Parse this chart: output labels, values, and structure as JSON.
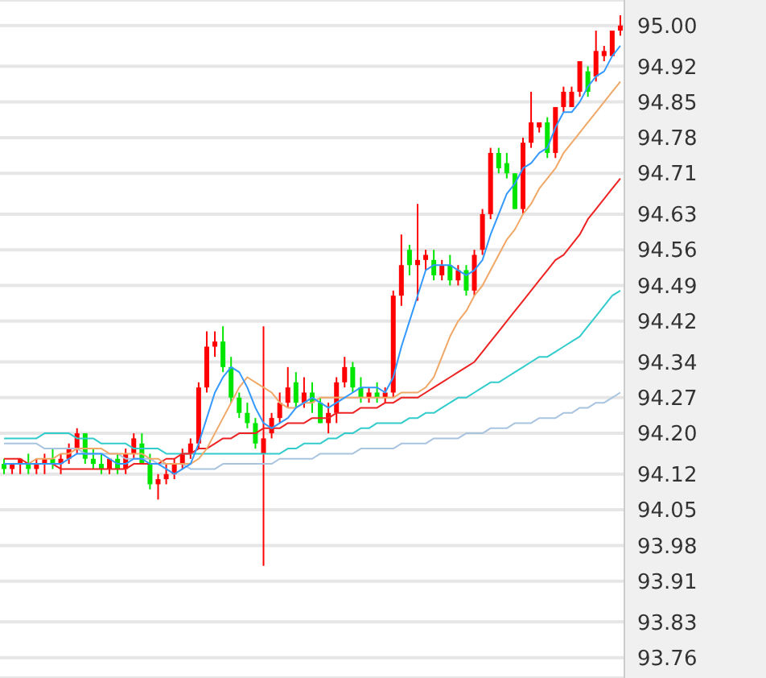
{
  "chart_data": {
    "type": "candlestick",
    "categories": [
      null,
      null,
      null,
      null,
      null,
      null,
      null,
      null,
      null,
      null,
      null,
      null,
      null,
      null,
      null,
      null,
      null,
      null,
      null,
      null,
      null,
      null,
      null,
      null,
      null,
      null,
      null,
      null,
      null,
      null,
      null,
      null,
      null,
      null,
      null,
      null,
      null,
      null,
      null,
      null,
      null,
      null,
      null,
      null,
      null,
      null,
      null,
      null,
      null,
      null,
      null,
      null,
      null,
      null,
      null,
      null,
      null,
      null,
      null,
      null,
      null,
      null,
      null,
      null,
      null,
      null,
      null,
      null,
      null,
      null,
      null,
      null,
      null,
      null,
      null,
      null,
      null
    ],
    "ohlc": [
      [
        94.14,
        94.15,
        94.12,
        94.13
      ],
      [
        94.13,
        94.14,
        94.12,
        94.14
      ],
      [
        94.14,
        94.15,
        94.12,
        94.15
      ],
      [
        94.14,
        94.16,
        94.12,
        94.13
      ],
      [
        94.13,
        94.15,
        94.12,
        94.14
      ],
      [
        94.14,
        94.16,
        94.12,
        94.15
      ],
      [
        94.15,
        94.17,
        94.13,
        94.14
      ],
      [
        94.14,
        94.16,
        94.12,
        94.15
      ],
      [
        94.15,
        94.18,
        94.14,
        94.17
      ],
      [
        94.17,
        94.21,
        94.16,
        94.2
      ],
      [
        94.2,
        94.2,
        94.14,
        94.15
      ],
      [
        94.15,
        94.17,
        94.13,
        94.14
      ],
      [
        94.14,
        94.16,
        94.12,
        94.13
      ],
      [
        94.13,
        94.15,
        94.12,
        94.15
      ],
      [
        94.15,
        94.16,
        94.12,
        94.13
      ],
      [
        94.13,
        94.17,
        94.12,
        94.16
      ],
      [
        94.16,
        94.2,
        94.15,
        94.19
      ],
      [
        94.18,
        94.2,
        94.14,
        94.14
      ],
      [
        94.14,
        94.16,
        94.09,
        94.1
      ],
      [
        94.1,
        94.12,
        94.07,
        94.11
      ],
      [
        94.11,
        94.14,
        94.1,
        94.12
      ],
      [
        94.12,
        94.15,
        94.11,
        94.14
      ],
      [
        94.14,
        94.17,
        94.13,
        94.16
      ],
      [
        94.16,
        94.19,
        94.15,
        94.18
      ],
      [
        94.18,
        94.3,
        94.17,
        94.29
      ],
      [
        94.29,
        94.4,
        94.28,
        94.37
      ],
      [
        94.37,
        94.4,
        94.35,
        94.38
      ],
      [
        94.38,
        94.41,
        94.32,
        94.33
      ],
      [
        94.33,
        94.35,
        94.26,
        94.27
      ],
      [
        94.27,
        94.28,
        94.23,
        94.24
      ],
      [
        94.24,
        94.26,
        94.21,
        94.22
      ],
      [
        94.22,
        94.23,
        94.17,
        94.18
      ],
      [
        94.16,
        94.41,
        93.94,
        94.19
      ],
      [
        94.2,
        94.24,
        94.19,
        94.23
      ],
      [
        94.23,
        94.28,
        94.22,
        94.26
      ],
      [
        94.26,
        94.33,
        94.25,
        94.29
      ],
      [
        94.3,
        94.32,
        94.25,
        94.26
      ],
      [
        94.26,
        94.31,
        94.25,
        94.28
      ],
      [
        94.28,
        94.3,
        94.24,
        94.26
      ],
      [
        94.26,
        94.27,
        94.22,
        94.22
      ],
      [
        94.22,
        94.26,
        94.2,
        94.24
      ],
      [
        94.24,
        94.31,
        94.22,
        94.3
      ],
      [
        94.3,
        94.35,
        94.29,
        94.33
      ],
      [
        94.33,
        94.34,
        94.28,
        94.29
      ],
      [
        94.29,
        94.31,
        94.26,
        94.27
      ],
      [
        94.27,
        94.29,
        94.26,
        94.28
      ],
      [
        94.28,
        94.3,
        94.26,
        94.27
      ],
      [
        94.27,
        94.29,
        94.26,
        94.28
      ],
      [
        94.28,
        94.48,
        94.27,
        94.47
      ],
      [
        94.47,
        94.59,
        94.45,
        94.53
      ],
      [
        94.56,
        94.57,
        94.51,
        94.53
      ],
      [
        94.53,
        94.65,
        94.46,
        94.54
      ],
      [
        94.54,
        94.56,
        94.52,
        94.55
      ],
      [
        94.54,
        94.56,
        94.5,
        94.51
      ],
      [
        94.51,
        94.54,
        94.5,
        94.53
      ],
      [
        94.53,
        94.55,
        94.49,
        94.5
      ],
      [
        94.5,
        94.53,
        94.49,
        94.52
      ],
      [
        94.52,
        94.53,
        94.47,
        94.48
      ],
      [
        94.48,
        94.56,
        94.47,
        94.55
      ],
      [
        94.56,
        94.64,
        94.55,
        94.63
      ],
      [
        94.63,
        94.76,
        94.62,
        94.75
      ],
      [
        94.75,
        94.76,
        94.71,
        94.72
      ],
      [
        94.73,
        94.75,
        94.7,
        94.71
      ],
      [
        94.71,
        94.71,
        94.64,
        94.64
      ],
      [
        94.64,
        94.78,
        94.63,
        94.77
      ],
      [
        94.77,
        94.87,
        94.76,
        94.81
      ],
      [
        94.8,
        94.81,
        94.79,
        94.81
      ],
      [
        94.81,
        94.82,
        94.74,
        94.75
      ],
      [
        94.75,
        94.84,
        94.74,
        94.84
      ],
      [
        94.84,
        94.88,
        94.83,
        94.87
      ],
      [
        94.84,
        94.88,
        94.84,
        94.87
      ],
      [
        94.87,
        94.93,
        94.86,
        94.93
      ],
      [
        94.91,
        94.92,
        94.86,
        94.87
      ],
      [
        94.9,
        94.99,
        94.89,
        94.95
      ],
      [
        94.94,
        94.96,
        94.93,
        94.95
      ],
      [
        94.94,
        94.99,
        94.94,
        94.99
      ],
      [
        94.99,
        95.02,
        94.98,
        95.0
      ]
    ],
    "colors": [
      "#00e600",
      "#ff0000",
      "#ff0000",
      "#00e600",
      "#ff0000",
      "#ff0000",
      "#00e600",
      "#ff0000",
      "#ff0000",
      "#ff0000",
      "#00e600",
      "#00e600",
      "#00e600",
      "#ff0000",
      "#00e600",
      "#ff0000",
      "#ff0000",
      "#00e600",
      "#00e600",
      "#ff0000",
      "#ff0000",
      "#ff0000",
      "#ff0000",
      "#ff0000",
      "#ff0000",
      "#ff0000",
      "#ff0000",
      "#00e600",
      "#00e600",
      "#00e600",
      "#00e600",
      "#00e600",
      "#ff0000",
      "#ff0000",
      "#ff0000",
      "#ff0000",
      "#00e600",
      "#ff0000",
      "#00e600",
      "#00e600",
      "#ff0000",
      "#ff0000",
      "#ff0000",
      "#00e600",
      "#00e600",
      "#ff0000",
      "#00e600",
      "#ff0000",
      "#ff0000",
      "#ff0000",
      "#00e600",
      "#ff0000",
      "#ff0000",
      "#00e600",
      "#ff0000",
      "#00e600",
      "#ff0000",
      "#00e600",
      "#ff0000",
      "#ff0000",
      "#ff0000",
      "#00e600",
      "#00e600",
      "#00e600",
      "#ff0000",
      "#ff0000",
      "#ff0000",
      "#00e600",
      "#ff0000",
      "#ff0000",
      "#ff0000",
      "#ff0000",
      "#00e600",
      "#ff0000",
      "#ff0000",
      "#ff0000",
      "#ff0000"
    ],
    "series": [
      {
        "type": "line",
        "color": "#a8c4de",
        "values": [
          94.18,
          94.18,
          94.18,
          94.18,
          94.18,
          94.17,
          94.17,
          94.17,
          94.17,
          94.17,
          94.16,
          94.16,
          94.16,
          94.16,
          94.16,
          94.15,
          94.15,
          94.15,
          94.15,
          94.14,
          94.14,
          94.14,
          94.14,
          94.13,
          94.13,
          94.13,
          94.13,
          94.14,
          94.14,
          94.14,
          94.14,
          94.14,
          94.14,
          94.14,
          94.15,
          94.15,
          94.15,
          94.15,
          94.15,
          94.16,
          94.16,
          94.16,
          94.16,
          94.16,
          94.17,
          94.17,
          94.17,
          94.17,
          94.17,
          94.18,
          94.18,
          94.18,
          94.18,
          94.19,
          94.19,
          94.19,
          94.19,
          94.2,
          94.2,
          94.2,
          94.21,
          94.21,
          94.21,
          94.22,
          94.22,
          94.22,
          94.23,
          94.23,
          94.23,
          94.24,
          94.24,
          94.25,
          94.25,
          94.26,
          94.26,
          94.27,
          94.28
        ]
      },
      {
        "type": "line",
        "color": "#33cccc",
        "values": [
          94.19,
          94.19,
          94.19,
          94.19,
          94.19,
          94.2,
          94.2,
          94.2,
          94.2,
          94.19,
          94.19,
          94.19,
          94.18,
          94.18,
          94.18,
          94.18,
          94.17,
          94.17,
          94.17,
          94.17,
          94.16,
          94.16,
          94.16,
          94.16,
          94.16,
          94.16,
          94.16,
          94.16,
          94.16,
          94.16,
          94.16,
          94.16,
          94.16,
          94.16,
          94.16,
          94.17,
          94.17,
          94.18,
          94.18,
          94.18,
          94.19,
          94.19,
          94.2,
          94.2,
          94.21,
          94.21,
          94.22,
          94.22,
          94.22,
          94.22,
          94.23,
          94.23,
          94.24,
          94.24,
          94.25,
          94.26,
          94.27,
          94.27,
          94.28,
          94.29,
          94.3,
          94.3,
          94.31,
          94.32,
          94.33,
          94.34,
          94.35,
          94.35,
          94.36,
          94.37,
          94.38,
          94.39,
          94.41,
          94.43,
          94.45,
          94.47,
          94.48
        ]
      },
      {
        "type": "line",
        "color": "#ee2222",
        "values": [
          94.15,
          94.15,
          94.15,
          94.14,
          94.14,
          94.14,
          94.14,
          94.13,
          94.13,
          94.13,
          94.13,
          94.13,
          94.13,
          94.13,
          94.13,
          94.13,
          94.14,
          94.14,
          94.14,
          94.14,
          94.15,
          94.15,
          94.16,
          94.16,
          94.17,
          94.17,
          94.18,
          94.19,
          94.19,
          94.2,
          94.2,
          94.2,
          94.21,
          94.21,
          94.21,
          94.22,
          94.22,
          94.22,
          94.23,
          94.23,
          94.23,
          94.24,
          94.24,
          94.24,
          94.25,
          94.25,
          94.25,
          94.26,
          94.26,
          94.27,
          94.27,
          94.27,
          94.28,
          94.29,
          94.3,
          94.31,
          94.32,
          94.33,
          94.34,
          94.36,
          94.38,
          94.4,
          94.42,
          94.44,
          94.46,
          94.48,
          94.5,
          94.52,
          94.54,
          94.55,
          94.57,
          94.59,
          94.62,
          94.64,
          94.66,
          94.68,
          94.7
        ]
      },
      {
        "type": "line",
        "color": "#f0a868",
        "values": [
          94.14,
          94.14,
          94.14,
          94.14,
          94.15,
          94.15,
          94.15,
          94.16,
          94.16,
          94.17,
          94.17,
          94.17,
          94.17,
          94.16,
          94.16,
          94.16,
          94.16,
          94.16,
          94.15,
          94.15,
          94.14,
          94.14,
          94.14,
          94.14,
          94.15,
          94.17,
          94.2,
          94.23,
          94.26,
          94.29,
          94.31,
          94.3,
          94.29,
          94.28,
          94.26,
          94.25,
          94.25,
          94.26,
          94.26,
          94.27,
          94.27,
          94.27,
          94.27,
          94.27,
          94.27,
          94.27,
          94.27,
          94.27,
          94.27,
          94.28,
          94.28,
          94.28,
          94.29,
          94.31,
          94.35,
          94.39,
          94.42,
          94.44,
          94.47,
          94.49,
          94.52,
          94.55,
          94.58,
          94.6,
          94.63,
          94.65,
          94.68,
          94.7,
          94.72,
          94.75,
          94.77,
          94.79,
          94.81,
          94.83,
          94.85,
          94.87,
          94.89
        ]
      },
      {
        "type": "line",
        "color": "#3399ff",
        "values": [
          94.14,
          94.14,
          94.14,
          94.14,
          94.14,
          94.14,
          94.14,
          94.14,
          94.15,
          94.16,
          94.16,
          94.16,
          94.16,
          94.15,
          94.14,
          94.14,
          94.15,
          94.15,
          94.14,
          94.14,
          94.13,
          94.12,
          94.13,
          94.14,
          94.18,
          94.23,
          94.28,
          94.31,
          94.33,
          94.32,
          94.29,
          94.25,
          94.22,
          94.21,
          94.22,
          94.23,
          94.25,
          94.26,
          94.27,
          94.26,
          94.25,
          94.26,
          94.27,
          94.28,
          94.29,
          94.29,
          94.29,
          94.28,
          94.31,
          94.37,
          94.42,
          94.47,
          94.52,
          94.53,
          94.53,
          94.53,
          94.52,
          94.51,
          94.52,
          94.54,
          94.59,
          94.63,
          94.67,
          94.69,
          94.72,
          94.73,
          94.75,
          94.76,
          94.8,
          94.83,
          94.83,
          94.85,
          94.88,
          94.9,
          94.91,
          94.94,
          94.96
        ]
      }
    ],
    "ylim": [
      93.72,
      95.05
    ],
    "yticks": [
      {
        "value": 95,
        "label": "95.00"
      },
      94.92,
      94.85,
      94.78,
      94.71,
      94.63,
      94.56,
      94.49,
      94.42,
      94.34,
      94.27,
      {
        "value": 94.2,
        "label": "94.20"
      },
      94.12,
      94.05,
      93.98,
      93.91,
      93.83,
      93.76
    ],
    "grid": "y",
    "tick_labels": "y",
    "marker": "none",
    "line_style": "solid"
  }
}
